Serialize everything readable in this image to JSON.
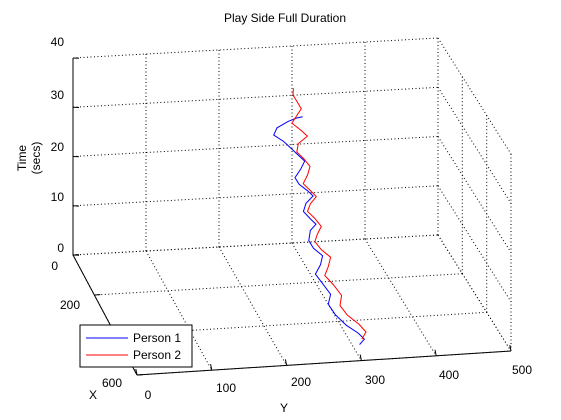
{
  "chart_data": {
    "type": "line3d",
    "title": "Play Side Full Duration",
    "xlabel": "X",
    "ylabel": "Y",
    "zlabel_line1": "Time",
    "zlabel_line2": "(secs)",
    "xlim": [
      0,
      600
    ],
    "ylim": [
      0,
      500
    ],
    "zlim": [
      0,
      40
    ],
    "x_ticks": [
      "0",
      "200",
      "600"
    ],
    "y_ticks": [
      "0",
      "100",
      "200",
      "300",
      "400",
      "500"
    ],
    "z_ticks": [
      "0",
      "10",
      "20",
      "30",
      "40"
    ],
    "grid": true,
    "legend_position": "bottom-left",
    "series": [
      {
        "name": "Person 1",
        "color": "#0000ff",
        "points": [
          [
            520,
            310,
            0
          ],
          [
            510,
            318,
            0.6
          ],
          [
            495,
            312,
            1.3
          ],
          [
            470,
            300,
            2
          ],
          [
            440,
            290,
            3
          ],
          [
            410,
            285,
            4
          ],
          [
            385,
            292,
            5
          ],
          [
            360,
            286,
            6
          ],
          [
            330,
            280,
            7
          ],
          [
            310,
            290,
            8
          ],
          [
            290,
            296,
            9
          ],
          [
            275,
            286,
            10
          ],
          [
            260,
            282,
            11
          ],
          [
            235,
            288,
            12
          ],
          [
            220,
            298,
            12.6
          ],
          [
            215,
            292,
            13.4
          ],
          [
            200,
            284,
            14.5
          ],
          [
            185,
            290,
            15.5
          ],
          [
            170,
            302,
            16.3
          ],
          [
            160,
            296,
            17
          ],
          [
            150,
            286,
            18
          ],
          [
            140,
            282,
            19
          ],
          [
            125,
            292,
            20
          ],
          [
            110,
            300,
            21
          ],
          [
            100,
            292,
            22
          ],
          [
            90,
            284,
            23
          ],
          [
            80,
            276,
            24
          ],
          [
            70,
            264,
            25
          ],
          [
            60,
            270,
            26
          ],
          [
            55,
            286,
            27
          ],
          [
            65,
            296,
            28
          ],
          [
            80,
            302,
            28.8
          ]
        ]
      },
      {
        "name": "Person 2",
        "color": "#ff0000",
        "points": [
          [
            500,
            316,
            0.2
          ],
          [
            485,
            324,
            1
          ],
          [
            465,
            318,
            1.8
          ],
          [
            440,
            306,
            2.8
          ],
          [
            415,
            300,
            3.8
          ],
          [
            390,
            306,
            4.8
          ],
          [
            360,
            300,
            5.8
          ],
          [
            335,
            292,
            6.8
          ],
          [
            315,
            300,
            7.8
          ],
          [
            295,
            306,
            8.8
          ],
          [
            280,
            296,
            9.8
          ],
          [
            262,
            290,
            10.8
          ],
          [
            245,
            296,
            11.6
          ],
          [
            228,
            304,
            12.4
          ],
          [
            212,
            298,
            13.4
          ],
          [
            198,
            290,
            14.4
          ],
          [
            185,
            296,
            15.4
          ],
          [
            172,
            306,
            16.2
          ],
          [
            160,
            300,
            17
          ],
          [
            148,
            292,
            18
          ],
          [
            135,
            300,
            19.2
          ],
          [
            118,
            306,
            20.2
          ],
          [
            104,
            300,
            21.2
          ],
          [
            92,
            292,
            22.2
          ],
          [
            80,
            296,
            23.4
          ],
          [
            70,
            310,
            24.4
          ],
          [
            62,
            302,
            25.4
          ],
          [
            50,
            292,
            26.4
          ],
          [
            40,
            300,
            27.4
          ],
          [
            30,
            308,
            28.4
          ],
          [
            18,
            304,
            29.4
          ],
          [
            8,
            300,
            30.4
          ],
          [
            0,
            302,
            31.4
          ]
        ]
      }
    ]
  }
}
